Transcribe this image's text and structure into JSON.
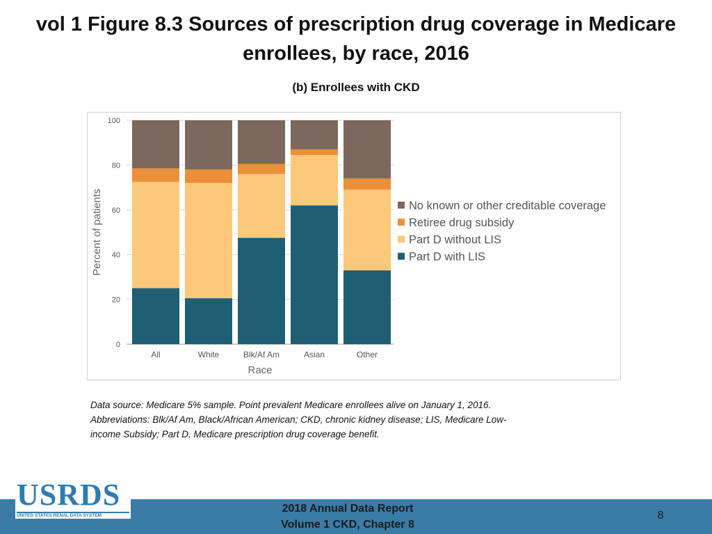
{
  "slide": {
    "title": "vol 1 Figure 8.3 Sources of prescription drug coverage in Medicare enrollees, by race, 2016",
    "subtitle": "(b) Enrollees with CKD",
    "footnote": "Data source: Medicare 5% sample. Point prevalent Medicare enrollees alive on January 1, 2016. Abbreviations: Blk/Af Am, Black/African American; CKD, chronic kidney disease; LIS, Medicare Low-income Subsidy; Part D, Medicare prescription drug coverage benefit.",
    "footer_line1": "2018 Annual Data Report",
    "footer_line2": "Volume 1 CKD, Chapter 8",
    "page_number": "8",
    "logo_word": "USRDS",
    "logo_tagline": "UNITED STATES RENAL DATA SYSTEM"
  },
  "chart_data": {
    "type": "bar",
    "stacked": true,
    "title": "",
    "xlabel": "Race",
    "ylabel": "Percent of patients",
    "ylim": [
      0,
      100
    ],
    "yticks": [
      0,
      20,
      40,
      60,
      80,
      100
    ],
    "grid": true,
    "legend_position": "right",
    "categories": [
      "All",
      "White",
      "Blk/Af Am",
      "Asian",
      "Other"
    ],
    "series": [
      {
        "name": "Part D with LIS",
        "color": "#1f5f74",
        "values": [
          25,
          20.5,
          47.5,
          62,
          33
        ]
      },
      {
        "name": "Part D without LIS",
        "color": "#fcc97a",
        "values": [
          47.5,
          51.5,
          28.5,
          22.5,
          36
        ]
      },
      {
        "name": "Retiree drug subsidy",
        "color": "#ec8f3a",
        "values": [
          6,
          6,
          4.5,
          2.5,
          5
        ]
      },
      {
        "name": "No known or other creditable coverage",
        "color": "#7d685e",
        "values": [
          21.5,
          22,
          19.5,
          13,
          26
        ]
      }
    ],
    "legend_order": [
      "No known or other creditable coverage",
      "Retiree drug subsidy",
      "Part D without LIS",
      "Part D with LIS"
    ]
  }
}
